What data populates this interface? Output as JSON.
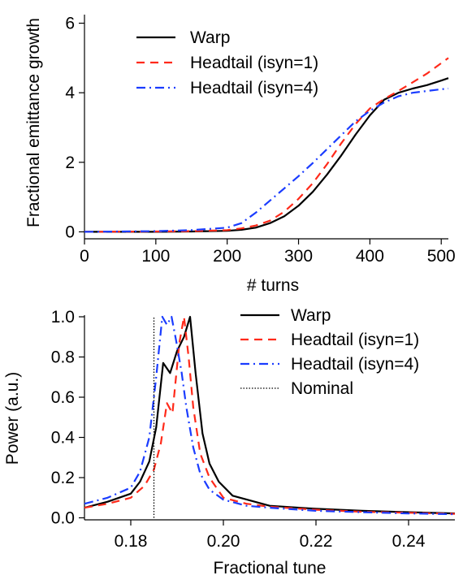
{
  "chart_data": [
    {
      "type": "line",
      "xlabel": "# turns",
      "ylabel": "Fractional emittance growth",
      "xlim": [
        0,
        510
      ],
      "ylim": [
        -0.2,
        6.2
      ],
      "xticks": [
        0,
        100,
        200,
        300,
        400,
        500
      ],
      "yticks": [
        0,
        2,
        4,
        6
      ],
      "grid": false,
      "legend_placement": "top-left",
      "series": [
        {
          "name": "Warp",
          "color": "#000000",
          "dash": "solid",
          "x": [
            0,
            100,
            150,
            200,
            220,
            240,
            260,
            280,
            300,
            320,
            340,
            360,
            380,
            400,
            420,
            440,
            460,
            480,
            500,
            510
          ],
          "y": [
            0,
            0,
            0.01,
            0.03,
            0.06,
            0.12,
            0.25,
            0.45,
            0.75,
            1.15,
            1.65,
            2.2,
            2.8,
            3.35,
            3.8,
            4.0,
            4.12,
            4.22,
            4.35,
            4.42
          ]
        },
        {
          "name": "Headtail (isyn=1)",
          "color": "#ff2a1a",
          "dash": "dashed",
          "x": [
            0,
            100,
            150,
            200,
            220,
            240,
            260,
            280,
            300,
            320,
            340,
            360,
            380,
            400,
            420,
            440,
            460,
            480,
            500,
            510
          ],
          "y": [
            0,
            0.01,
            0.02,
            0.05,
            0.1,
            0.18,
            0.32,
            0.58,
            0.95,
            1.4,
            1.95,
            2.55,
            3.1,
            3.55,
            3.82,
            4.05,
            4.3,
            4.55,
            4.85,
            5.0
          ]
        },
        {
          "name": "Headtail (isyn=4)",
          "color": "#1a3cff",
          "dash": "dashdot",
          "x": [
            0,
            100,
            150,
            200,
            220,
            240,
            260,
            280,
            300,
            320,
            340,
            360,
            380,
            400,
            420,
            440,
            460,
            480,
            500,
            510
          ],
          "y": [
            0,
            0.02,
            0.05,
            0.12,
            0.25,
            0.55,
            0.9,
            1.25,
            1.6,
            1.98,
            2.38,
            2.78,
            3.18,
            3.48,
            3.72,
            3.9,
            4.0,
            4.05,
            4.1,
            4.12
          ]
        }
      ]
    },
    {
      "type": "line",
      "xlabel": "Fractional tune",
      "ylabel": "Power (a.u.)",
      "xlim": [
        0.17,
        0.25
      ],
      "ylim": [
        -0.01,
        1.0
      ],
      "xticks": [
        0.18,
        0.2,
        0.22,
        0.24
      ],
      "xtick_labels": [
        "0.18",
        "0.20",
        "0.22",
        "0.24"
      ],
      "yticks": [
        0.0,
        0.2,
        0.4,
        0.6,
        0.8,
        1.0
      ],
      "ytick_labels": [
        "0.0",
        "0.2",
        "0.4",
        "0.6",
        "0.8",
        "1.0"
      ],
      "grid": false,
      "legend_placement": "top-right",
      "series": [
        {
          "name": "Warp",
          "color": "#000000",
          "dash": "solid",
          "x": [
            0.17,
            0.175,
            0.18,
            0.182,
            0.184,
            0.1855,
            0.187,
            0.1885,
            0.19,
            0.1915,
            0.1928,
            0.194,
            0.1955,
            0.197,
            0.199,
            0.202,
            0.21,
            0.22,
            0.23,
            0.24,
            0.25
          ],
          "y": [
            0.05,
            0.08,
            0.12,
            0.18,
            0.28,
            0.45,
            0.77,
            0.72,
            0.83,
            0.9,
            1.0,
            0.72,
            0.42,
            0.27,
            0.18,
            0.11,
            0.06,
            0.045,
            0.035,
            0.028,
            0.022
          ]
        },
        {
          "name": "Headtail (isyn=1)",
          "color": "#ff2a1a",
          "dash": "dashed",
          "x": [
            0.17,
            0.175,
            0.18,
            0.183,
            0.185,
            0.1865,
            0.1878,
            0.189,
            0.1905,
            0.1915,
            0.1925,
            0.1935,
            0.195,
            0.197,
            0.2,
            0.205,
            0.21,
            0.22,
            0.23,
            0.24,
            0.25
          ],
          "y": [
            0.05,
            0.07,
            0.1,
            0.16,
            0.24,
            0.37,
            0.57,
            0.52,
            0.87,
            1.0,
            0.8,
            0.55,
            0.32,
            0.2,
            0.1,
            0.07,
            0.055,
            0.04,
            0.03,
            0.025,
            0.02
          ]
        },
        {
          "name": "Headtail (isyn=4)",
          "color": "#1a3cff",
          "dash": "dashdot",
          "x": [
            0.17,
            0.175,
            0.18,
            0.182,
            0.184,
            0.1855,
            0.1868,
            0.1878,
            0.1888,
            0.1898,
            0.191,
            0.192,
            0.1935,
            0.195,
            0.197,
            0.2,
            0.205,
            0.21,
            0.22,
            0.23,
            0.24,
            0.25
          ],
          "y": [
            0.07,
            0.1,
            0.15,
            0.23,
            0.4,
            0.7,
            1.0,
            0.96,
            1.0,
            0.88,
            0.72,
            0.55,
            0.35,
            0.22,
            0.14,
            0.09,
            0.06,
            0.05,
            0.035,
            0.028,
            0.022,
            0.018
          ]
        },
        {
          "name": "Nominal",
          "color": "#000000",
          "dash": "dotted",
          "x": [
            0.185,
            0.185
          ],
          "y": [
            0.0,
            1.0
          ]
        }
      ]
    }
  ]
}
